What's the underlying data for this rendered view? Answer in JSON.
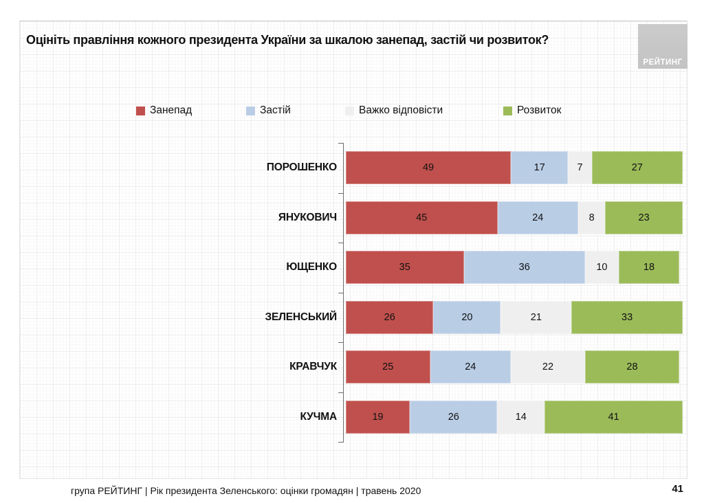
{
  "slide": {
    "title": "Оцініть правління кожного президента України за шкалою занепад, застій чи розвиток?",
    "logo_text": "РЕЙТИНГ",
    "footer": "група РЕЙТИНГ |  Рік президента Зеленського: оцінки громадян | травень 2020",
    "page_number": "41"
  },
  "colors": {
    "decline": "#C0504D",
    "stagnation": "#B9CDE5",
    "hard_to_say": "#EFEFEF",
    "development": "#9BBB59",
    "logo_background": "#C9C9C9",
    "axis": "#6D6D6D"
  },
  "chart_data": {
    "type": "bar",
    "orientation": "horizontal",
    "stacked": true,
    "title": "Оцініть правління кожного президента України за шкалою занепад, застій чи розвиток?",
    "categories": [
      "ПОРОШЕНКО",
      "ЯНУКОВИЧ",
      "ЮЩЕНКО",
      "ЗЕЛЕНСЬКИЙ",
      "КРАВЧУК",
      "КУЧМА"
    ],
    "series": [
      {
        "name": "Занепад",
        "color": "#C0504D",
        "values": [
          49,
          45,
          35,
          26,
          25,
          19
        ]
      },
      {
        "name": "Застій",
        "color": "#B9CDE5",
        "values": [
          17,
          24,
          36,
          20,
          24,
          26
        ]
      },
      {
        "name": "Важко відповісти",
        "color": "#EFEFEF",
        "values": [
          7,
          8,
          10,
          21,
          22,
          14
        ]
      },
      {
        "name": "Розвиток",
        "color": "#9BBB59",
        "values": [
          27,
          23,
          18,
          33,
          28,
          41
        ]
      }
    ],
    "xlim": [
      0,
      100
    ],
    "grid": false,
    "legend_position": "top",
    "value_labels": "inside"
  }
}
